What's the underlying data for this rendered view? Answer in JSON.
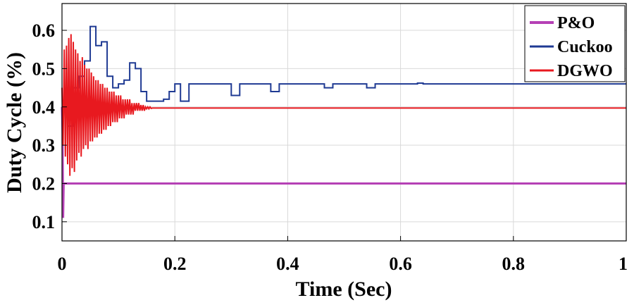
{
  "chart_data": {
    "type": "line",
    "xlabel": "Time (Sec)",
    "ylabel": "Duty Cycle (%)",
    "xlim": [
      0,
      1
    ],
    "ylim": [
      0.05,
      0.67
    ],
    "xticks": [
      0,
      0.2,
      0.4,
      0.6,
      0.8,
      1
    ],
    "xtick_labels": [
      "0",
      "0.2",
      "0.4",
      "0.6",
      "0.8",
      "1"
    ],
    "yticks": [
      0.1,
      0.2,
      0.3,
      0.4,
      0.5,
      0.6
    ],
    "ytick_labels": [
      "0.1",
      "0.2",
      "0.3",
      "0.4",
      "0.5",
      "0.6"
    ],
    "grid": true,
    "legend_position": "top-right",
    "series": [
      {
        "name": "P&O",
        "color": "#b540b5",
        "x": [
          0,
          0.001,
          0.002,
          0.003,
          0.004,
          1
        ],
        "y": [
          0.4,
          0.33,
          0.11,
          0.2,
          0.2,
          0.2
        ]
      },
      {
        "name": "Cuckoo",
        "color": "#1f3a93",
        "x": [
          0,
          0.01,
          0.01,
          0.02,
          0.02,
          0.03,
          0.03,
          0.04,
          0.04,
          0.05,
          0.05,
          0.06,
          0.06,
          0.07,
          0.07,
          0.08,
          0.08,
          0.09,
          0.09,
          0.1,
          0.1,
          0.11,
          0.11,
          0.12,
          0.12,
          0.13,
          0.13,
          0.14,
          0.14,
          0.15,
          0.15,
          0.18,
          0.18,
          0.19,
          0.19,
          0.2,
          0.2,
          0.21,
          0.21,
          0.225,
          0.225,
          0.3,
          0.3,
          0.315,
          0.315,
          0.37,
          0.37,
          0.385,
          0.385,
          0.465,
          0.465,
          0.48,
          0.48,
          0.54,
          0.54,
          0.555,
          0.555,
          0.63,
          0.63,
          0.64,
          0.64,
          1
        ],
        "y": [
          0.4,
          0.4,
          0.35,
          0.35,
          0.45,
          0.45,
          0.48,
          0.48,
          0.52,
          0.52,
          0.61,
          0.61,
          0.56,
          0.56,
          0.57,
          0.57,
          0.48,
          0.48,
          0.45,
          0.45,
          0.46,
          0.46,
          0.47,
          0.47,
          0.515,
          0.515,
          0.5,
          0.5,
          0.44,
          0.44,
          0.415,
          0.415,
          0.42,
          0.42,
          0.44,
          0.44,
          0.46,
          0.46,
          0.415,
          0.415,
          0.46,
          0.46,
          0.43,
          0.43,
          0.46,
          0.46,
          0.44,
          0.44,
          0.46,
          0.46,
          0.45,
          0.45,
          0.46,
          0.46,
          0.45,
          0.45,
          0.46,
          0.46,
          0.462,
          0.462,
          0.46,
          0.46
        ]
      },
      {
        "name": "DGWO",
        "color": "#e8191f",
        "x": [
          0,
          0.002,
          0.004,
          0.006,
          0.008,
          0.01,
          0.012,
          0.014,
          0.016,
          0.018,
          0.02,
          0.022,
          0.024,
          0.026,
          0.028,
          0.03,
          0.032,
          0.034,
          0.036,
          0.038,
          0.04,
          0.042,
          0.044,
          0.046,
          0.048,
          0.05,
          0.052,
          0.054,
          0.056,
          0.058,
          0.06,
          0.062,
          0.064,
          0.066,
          0.068,
          0.07,
          0.072,
          0.074,
          0.076,
          0.078,
          0.08,
          0.082,
          0.084,
          0.086,
          0.088,
          0.09,
          0.092,
          0.094,
          0.096,
          0.098,
          0.1,
          0.102,
          0.104,
          0.106,
          0.108,
          0.11,
          0.112,
          0.114,
          0.116,
          0.118,
          0.12,
          0.122,
          0.124,
          0.126,
          0.128,
          0.13,
          0.132,
          0.134,
          0.136,
          0.138,
          0.14,
          0.142,
          0.144,
          0.146,
          0.148,
          0.15,
          0.152,
          0.154,
          0.156,
          0.158,
          0.16,
          0.165,
          1
        ],
        "y": [
          0.45,
          0.3,
          0.55,
          0.27,
          0.56,
          0.25,
          0.58,
          0.22,
          0.59,
          0.24,
          0.57,
          0.23,
          0.55,
          0.26,
          0.54,
          0.28,
          0.52,
          0.27,
          0.53,
          0.29,
          0.51,
          0.3,
          0.5,
          0.29,
          0.5,
          0.31,
          0.49,
          0.31,
          0.48,
          0.32,
          0.47,
          0.32,
          0.47,
          0.33,
          0.46,
          0.33,
          0.46,
          0.34,
          0.45,
          0.34,
          0.45,
          0.35,
          0.44,
          0.35,
          0.44,
          0.36,
          0.44,
          0.36,
          0.43,
          0.36,
          0.43,
          0.37,
          0.43,
          0.37,
          0.42,
          0.37,
          0.42,
          0.38,
          0.42,
          0.38,
          0.42,
          0.38,
          0.41,
          0.38,
          0.41,
          0.39,
          0.41,
          0.39,
          0.41,
          0.39,
          0.405,
          0.39,
          0.405,
          0.39,
          0.4,
          0.395,
          0.4,
          0.395,
          0.4,
          0.396,
          0.397,
          0.397,
          0.397
        ]
      }
    ]
  }
}
